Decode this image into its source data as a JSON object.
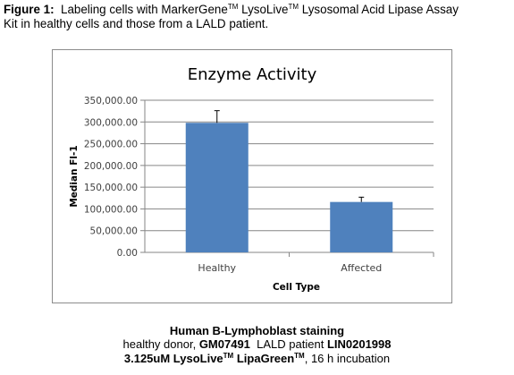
{
  "caption": {
    "label": "Figure 1:",
    "line1_a": "Labeling cells with MarkerGene",
    "tm": "TM",
    "line1_b": "LysoLive",
    "line1_c": "Lysosomal Acid Lipase Assay",
    "line2": "Kit in healthy cells and those from a LALD patient."
  },
  "bottom": {
    "title": "Human B-Lymphoblast staining",
    "donor_prefix": "healthy donor,",
    "donor_id": "GM07491",
    "patient_prefix": "LALD patient",
    "patient_id": "LIN0201998",
    "reagent_a": "3.125uM LysoLive",
    "reagent_b": "LipaGreen",
    "incubation": ", 16 h incubation"
  },
  "chart_data": {
    "type": "bar",
    "title": "Enzyme Activity",
    "xlabel": "Cell Type",
    "ylabel": "Median Fl-1",
    "categories": [
      "Healthy",
      "Affected"
    ],
    "values": [
      298000,
      116000
    ],
    "error": [
      28000,
      11000
    ],
    "ylim": [
      0,
      350000
    ],
    "yticks": [
      "0.00",
      "50,000.00",
      "100,000.00",
      "150,000.00",
      "200,000.00",
      "250,000.00",
      "300,000.00",
      "350,000.00"
    ],
    "ytick_values": [
      0,
      50000,
      100000,
      150000,
      200000,
      250000,
      300000,
      350000
    ],
    "grid": true,
    "bar_color": "#4f81bd",
    "grid_color": "#868686"
  }
}
